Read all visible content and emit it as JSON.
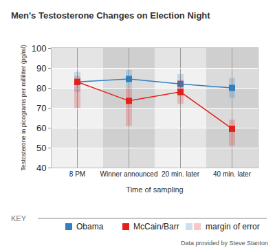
{
  "chart_data": {
    "type": "line",
    "title": "Men's Testosterone Changes on Election Night",
    "x_label": "Time of sampling",
    "y_label": "Testosterone in picograms per milliliter (pg/ml)",
    "categories": [
      "8 PM",
      "Winner announced",
      "20 min. later",
      "40 min. later"
    ],
    "series": [
      {
        "name": "Obama",
        "color": "#2f7fc1",
        "marker": "square",
        "values": [
          83,
          84.5,
          82,
          80
        ],
        "error_minus": [
          5,
          4.5,
          6,
          5
        ],
        "error_plus": [
          5,
          4.5,
          5,
          5
        ]
      },
      {
        "name": "McCain/Barr",
        "color": "#e3211c",
        "marker": "square",
        "values": [
          83,
          73.5,
          78,
          59.5
        ],
        "error_minus": [
          13,
          12.5,
          6,
          8.5
        ],
        "error_plus": [
          3,
          6.5,
          6,
          4.5
        ]
      }
    ],
    "ylim": [
      40,
      100
    ],
    "yticks": [
      40,
      50,
      60,
      70,
      80,
      90,
      100
    ],
    "grid": true,
    "key_title": "KEY",
    "error_label": "margin of error",
    "source": "Data provided by Steve Stanton"
  }
}
